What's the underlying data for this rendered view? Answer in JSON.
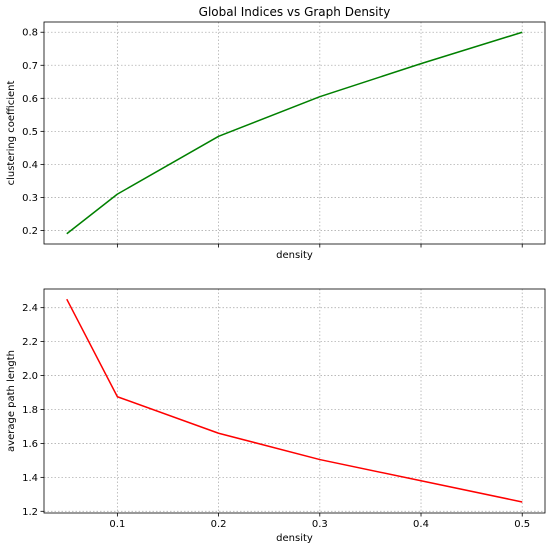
{
  "chart_data": [
    {
      "type": "line",
      "title": "Global Indices vs Graph Density",
      "xlabel": "density",
      "ylabel": "clustering coefficient",
      "x": [
        0.05,
        0.1,
        0.2,
        0.3,
        0.4,
        0.5
      ],
      "series": [
        {
          "values": [
            0.19,
            0.31,
            0.485,
            0.605,
            0.705,
            0.8
          ],
          "color": "#008000"
        }
      ],
      "xlim": [
        0.0275,
        0.5225
      ],
      "ylim": [
        0.159,
        0.831
      ],
      "xticks": [
        0.1,
        0.2,
        0.3,
        0.4,
        0.5
      ],
      "xtick_labels_visible": false,
      "yticks": [
        0.2,
        0.3,
        0.4,
        0.5,
        0.6,
        0.7,
        0.8
      ],
      "ytick_labels": [
        "0.2",
        "0.3",
        "0.4",
        "0.5",
        "0.6",
        "0.7",
        "0.8"
      ],
      "grid": true
    },
    {
      "type": "line",
      "title": "",
      "xlabel": "density",
      "ylabel": "average path length",
      "x": [
        0.05,
        0.1,
        0.2,
        0.3,
        0.4,
        0.5
      ],
      "series": [
        {
          "values": [
            2.45,
            1.875,
            1.66,
            1.505,
            1.38,
            1.255
          ],
          "color": "#ff0000"
        }
      ],
      "xlim": [
        0.0275,
        0.5225
      ],
      "ylim": [
        1.19,
        2.51
      ],
      "xticks": [
        0.1,
        0.2,
        0.3,
        0.4,
        0.5
      ],
      "xtick_labels": [
        "0.1",
        "0.2",
        "0.3",
        "0.4",
        "0.5"
      ],
      "xtick_labels_visible": true,
      "yticks": [
        1.2,
        1.4,
        1.6,
        1.8,
        2.0,
        2.2,
        2.4
      ],
      "ytick_labels": [
        "1.2",
        "1.4",
        "1.6",
        "1.8",
        "2.0",
        "2.2",
        "2.4"
      ],
      "grid": true
    }
  ]
}
